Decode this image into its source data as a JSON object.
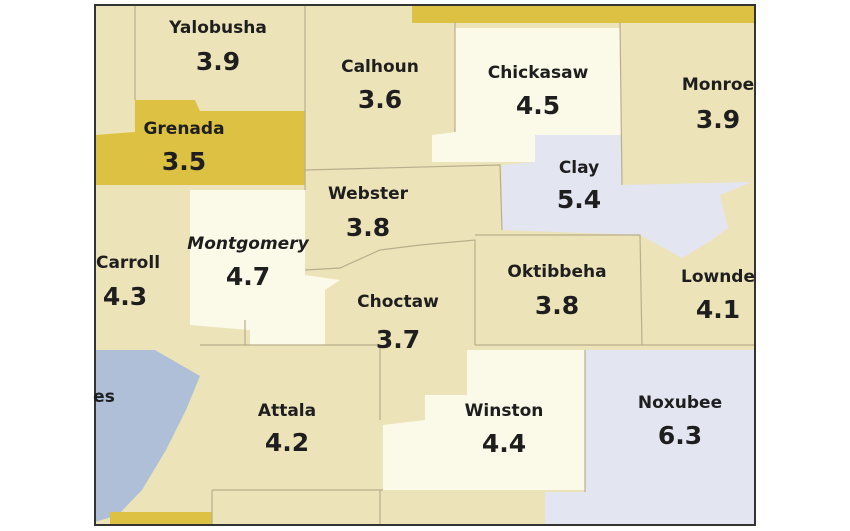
{
  "colors": {
    "tan": "#ede3b9",
    "cream": "#fbf9e7",
    "gold": "#dcc142",
    "lavender": "#e3e5f1",
    "water": "#aebfd7"
  },
  "counties": [
    {
      "id": "yalobusha",
      "name": "Yalobusha",
      "value": "3.9"
    },
    {
      "id": "calhoun",
      "name": "Calhoun",
      "value": "3.6"
    },
    {
      "id": "chickasaw",
      "name": "Chickasaw",
      "value": "4.5"
    },
    {
      "id": "monroe",
      "name": "Monroe",
      "value": "3.9"
    },
    {
      "id": "grenada",
      "name": "Grenada",
      "value": "3.5"
    },
    {
      "id": "clay",
      "name": "Clay",
      "value": "5.4"
    },
    {
      "id": "webster",
      "name": "Webster",
      "value": "3.8"
    },
    {
      "id": "carroll",
      "name": "Carroll",
      "value": "4.3"
    },
    {
      "id": "montgomery",
      "name": "Montgomery",
      "value": "4.7"
    },
    {
      "id": "oktibbeha",
      "name": "Oktibbeha",
      "value": "3.8"
    },
    {
      "id": "lowndes",
      "name": "Lownde",
      "value": "4.1"
    },
    {
      "id": "choctaw",
      "name": "Choctaw",
      "value": "3.7"
    },
    {
      "id": "attala",
      "name": "Attala",
      "value": "4.2"
    },
    {
      "id": "winston",
      "name": "Winston",
      "value": "4.4"
    },
    {
      "id": "noxubee",
      "name": "Noxubee",
      "value": "6.3"
    }
  ],
  "partial_label": "es"
}
